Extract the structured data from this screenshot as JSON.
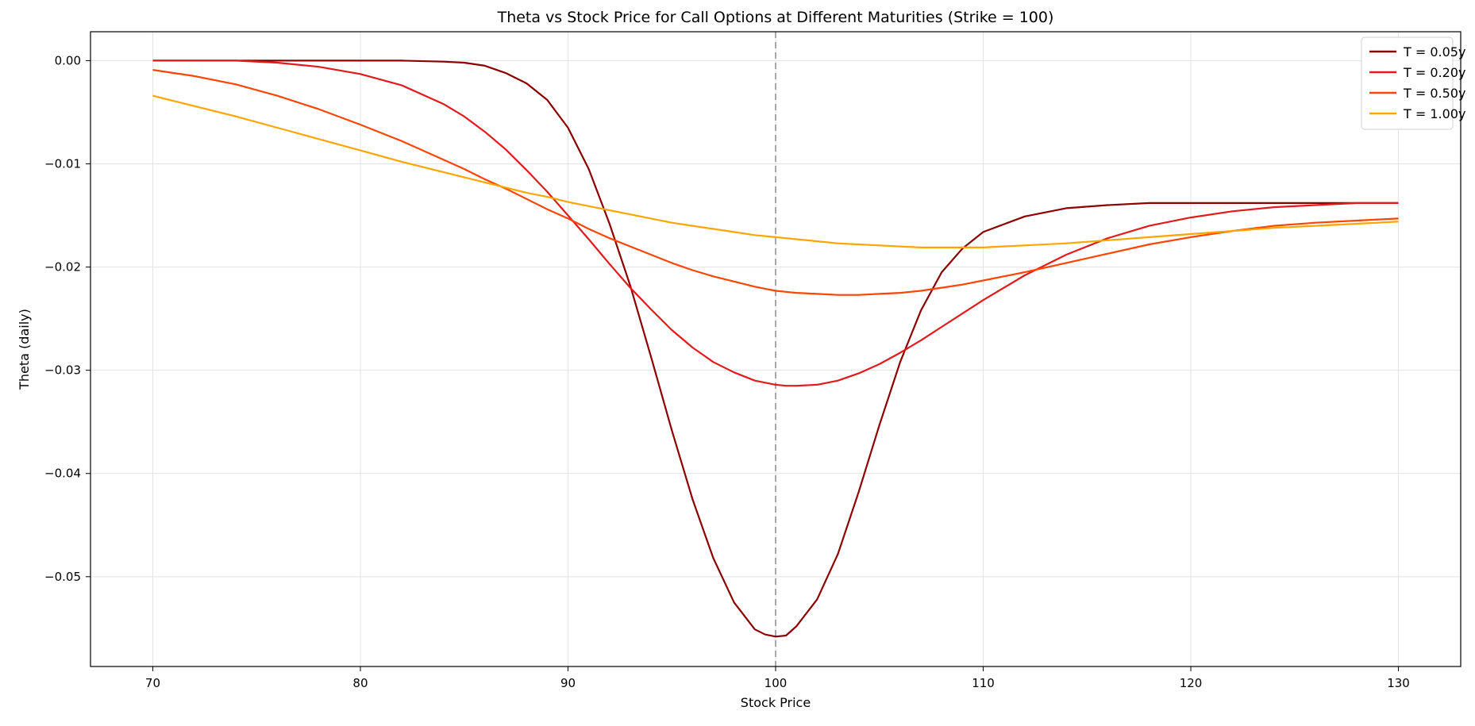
{
  "chart_data": {
    "type": "line",
    "title": "Theta vs Stock Price for Call Options at Different Maturities (Strike = 100)",
    "xlabel": "Stock Price",
    "ylabel": "Theta (daily)",
    "xlim": [
      67,
      133
    ],
    "ylim": [
      -0.0587,
      0.0028
    ],
    "xticks": [
      70,
      80,
      90,
      100,
      110,
      120,
      130
    ],
    "yticks": [
      0.0,
      -0.01,
      -0.02,
      -0.03,
      -0.04,
      -0.05
    ],
    "xtick_labels": [
      "70",
      "80",
      "90",
      "100",
      "110",
      "120",
      "130"
    ],
    "ytick_labels": [
      "0.00",
      "−0.01",
      "−0.02",
      "−0.03",
      "−0.04",
      "−0.05"
    ],
    "grid": true,
    "legend_position": "top-right",
    "strike_marker": 100,
    "x": [
      70,
      72,
      74,
      76,
      78,
      80,
      82,
      84,
      85,
      86,
      87,
      88,
      89,
      90,
      91,
      92,
      93,
      94,
      95,
      96,
      97,
      98,
      99,
      99.5,
      100,
      100.5,
      101,
      102,
      103,
      104,
      105,
      106,
      107,
      108,
      109,
      110,
      112,
      114,
      116,
      118,
      120,
      122,
      124,
      126,
      128,
      130
    ],
    "series": [
      {
        "name": "T = 0.05y",
        "color": "#8b0000",
        "values": [
          0.0,
          0.0,
          0.0,
          0.0,
          0.0,
          0.0,
          0.0,
          -0.0001,
          -0.0002,
          -0.0005,
          -0.0012,
          -0.0022,
          -0.0038,
          -0.0065,
          -0.0105,
          -0.0158,
          -0.0218,
          -0.0287,
          -0.0358,
          -0.0425,
          -0.0482,
          -0.0525,
          -0.0551,
          -0.0556,
          -0.0558,
          -0.0557,
          -0.0548,
          -0.0522,
          -0.0478,
          -0.0418,
          -0.0353,
          -0.0292,
          -0.0242,
          -0.0205,
          -0.0182,
          -0.0166,
          -0.0151,
          -0.0143,
          -0.014,
          -0.0138,
          -0.0138,
          -0.0138,
          -0.0138,
          -0.0138,
          -0.0138,
          -0.0138
        ]
      },
      {
        "name": "T = 0.20y",
        "color": "#e31a1c",
        "values": [
          0.0,
          0.0,
          0.0,
          -0.0002,
          -0.0006,
          -0.0013,
          -0.0024,
          -0.0042,
          -0.0054,
          -0.0069,
          -0.0086,
          -0.0106,
          -0.0127,
          -0.015,
          -0.0173,
          -0.0197,
          -0.022,
          -0.0241,
          -0.0261,
          -0.0278,
          -0.0292,
          -0.0302,
          -0.031,
          -0.0312,
          -0.0314,
          -0.0315,
          -0.0315,
          -0.0314,
          -0.031,
          -0.0303,
          -0.0294,
          -0.0283,
          -0.0271,
          -0.0258,
          -0.0245,
          -0.0232,
          -0.0208,
          -0.0188,
          -0.0172,
          -0.016,
          -0.0152,
          -0.0146,
          -0.0142,
          -0.014,
          -0.0138,
          -0.0138
        ]
      },
      {
        "name": "T = 0.50y",
        "color": "#ff4500",
        "values": [
          -0.0009,
          -0.0015,
          -0.0023,
          -0.0034,
          -0.0047,
          -0.0062,
          -0.0078,
          -0.0096,
          -0.0105,
          -0.0115,
          -0.0124,
          -0.0134,
          -0.0144,
          -0.0153,
          -0.0163,
          -0.0172,
          -0.018,
          -0.0188,
          -0.0196,
          -0.0203,
          -0.0209,
          -0.0214,
          -0.0219,
          -0.0221,
          -0.0223,
          -0.0224,
          -0.0225,
          -0.0226,
          -0.0227,
          -0.0227,
          -0.0226,
          -0.0225,
          -0.0223,
          -0.022,
          -0.0217,
          -0.0213,
          -0.0205,
          -0.0196,
          -0.0187,
          -0.0178,
          -0.0171,
          -0.0165,
          -0.016,
          -0.0157,
          -0.0155,
          -0.0153
        ]
      },
      {
        "name": "T = 1.00y",
        "color": "#ffa500",
        "values": [
          -0.0034,
          -0.0044,
          -0.0054,
          -0.0065,
          -0.0076,
          -0.0087,
          -0.0098,
          -0.0108,
          -0.0113,
          -0.0118,
          -0.0123,
          -0.0128,
          -0.0132,
          -0.0137,
          -0.0141,
          -0.0145,
          -0.0149,
          -0.0153,
          -0.0157,
          -0.016,
          -0.0163,
          -0.0166,
          -0.0169,
          -0.017,
          -0.0171,
          -0.0172,
          -0.0173,
          -0.0175,
          -0.0177,
          -0.0178,
          -0.0179,
          -0.018,
          -0.0181,
          -0.0181,
          -0.0181,
          -0.0181,
          -0.0179,
          -0.0177,
          -0.0174,
          -0.0171,
          -0.0168,
          -0.0165,
          -0.0162,
          -0.016,
          -0.0158,
          -0.0156
        ]
      }
    ]
  }
}
